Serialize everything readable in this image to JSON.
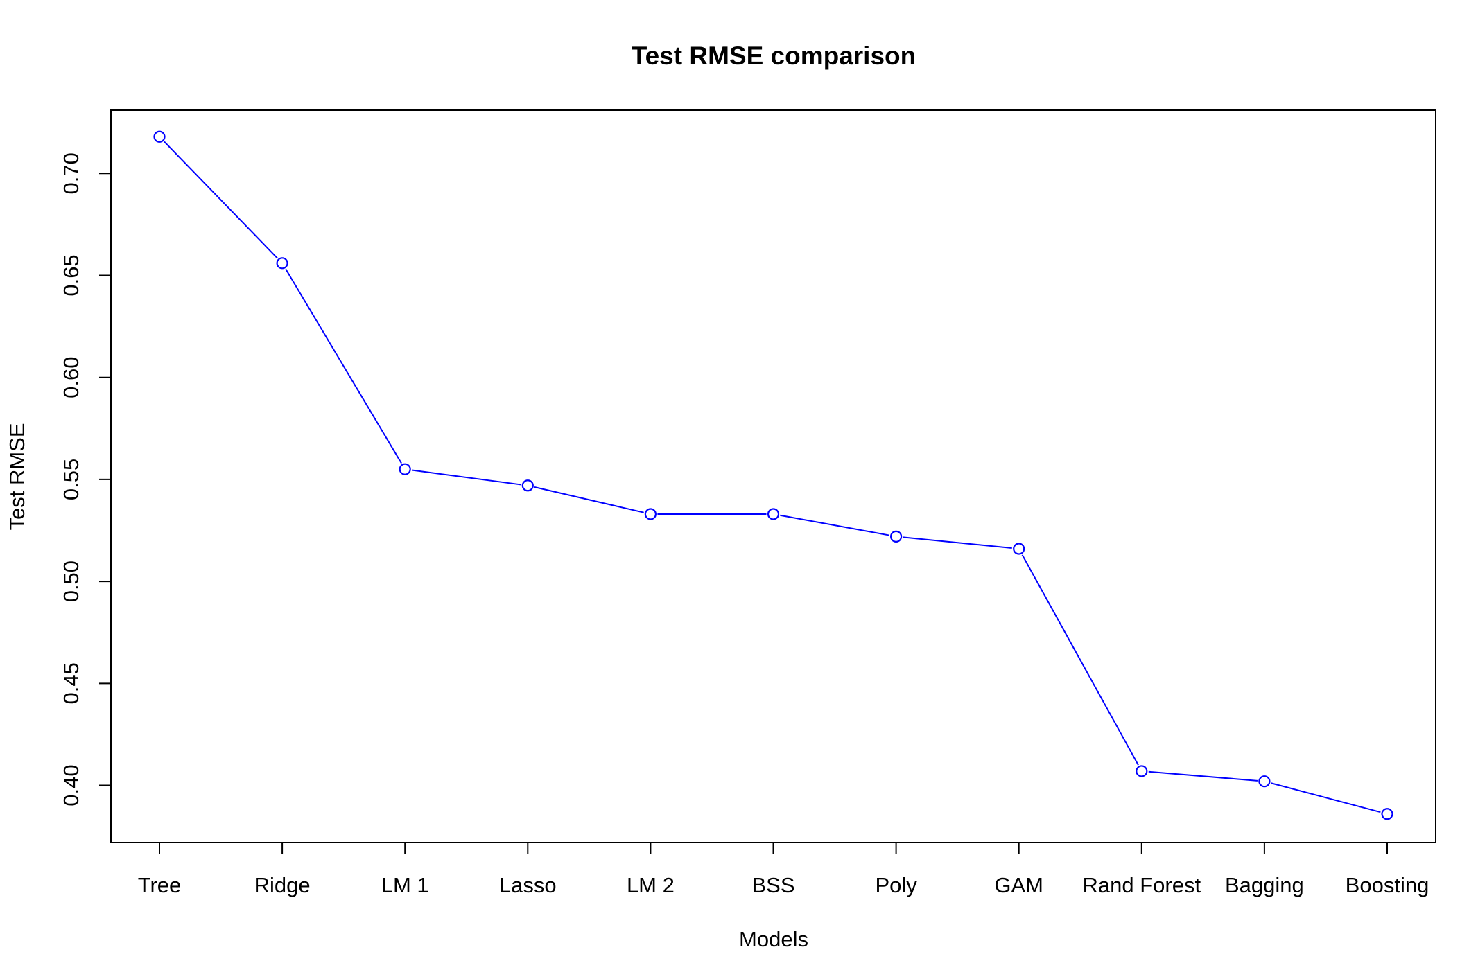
{
  "colors": {
    "series": "#0000ff",
    "axis": "#000000",
    "background": "#ffffff"
  },
  "chart_data": {
    "type": "line",
    "title": "Test RMSE comparison",
    "xlabel": "Models",
    "ylabel": "Test RMSE",
    "categories": [
      "Tree",
      "Ridge",
      "LM 1",
      "Lasso",
      "LM 2",
      "BSS",
      "Poly",
      "GAM",
      "Rand Forest",
      "Bagging",
      "Boosting"
    ],
    "series": [
      {
        "values": [
          0.718,
          0.656,
          0.555,
          0.547,
          0.533,
          0.533,
          0.522,
          0.516,
          0.407,
          0.402,
          0.386
        ],
        "marker": "open-circle",
        "line": true
      }
    ],
    "yticks": [
      "0.40",
      "0.45",
      "0.50",
      "0.55",
      "0.60",
      "0.65",
      "0.70"
    ],
    "ylim": [
      0.372,
      0.731
    ],
    "grid": false,
    "legend": "none"
  }
}
